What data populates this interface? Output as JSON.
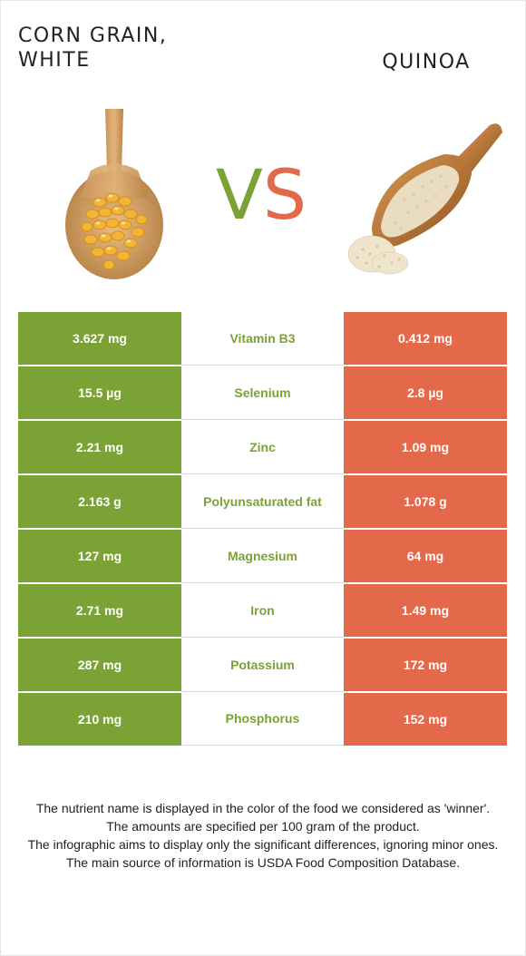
{
  "left_food": {
    "title_line1": "CORN GRAIN,",
    "title_line2": "WHITE",
    "color": "#7ba234"
  },
  "right_food": {
    "title": "QUINOA",
    "color": "#e3694a"
  },
  "vs": {
    "v": "V",
    "s": "S"
  },
  "rows": [
    {
      "left": "3.627 mg",
      "nutrient": "Vitamin B3",
      "right": "0.412 mg"
    },
    {
      "left": "15.5 µg",
      "nutrient": "Selenium",
      "right": "2.8 µg"
    },
    {
      "left": "2.21 mg",
      "nutrient": "Zinc",
      "right": "1.09 mg"
    },
    {
      "left": "2.163 g",
      "nutrient": "Polyunsaturated fat",
      "right": "1.078 g"
    },
    {
      "left": "127 mg",
      "nutrient": "Magnesium",
      "right": "64 mg"
    },
    {
      "left": "2.71 mg",
      "nutrient": "Iron",
      "right": "1.49 mg"
    },
    {
      "left": "287 mg",
      "nutrient": "Potassium",
      "right": "172 mg"
    },
    {
      "left": "210 mg",
      "nutrient": "Phosphorus",
      "right": "152 mg"
    }
  ],
  "notes": [
    "The nutrient name is displayed in the color of the food we considered as 'winner'.",
    "The amounts are specified per 100 gram of the product.",
    "The infographic aims to display only the significant differences, ignoring minor ones.",
    "The main source of information is USDA Food Composition Database."
  ],
  "images": {
    "left": "corn-kernels-on-wooden-spoon",
    "right": "quinoa-in-wooden-scoop"
  }
}
